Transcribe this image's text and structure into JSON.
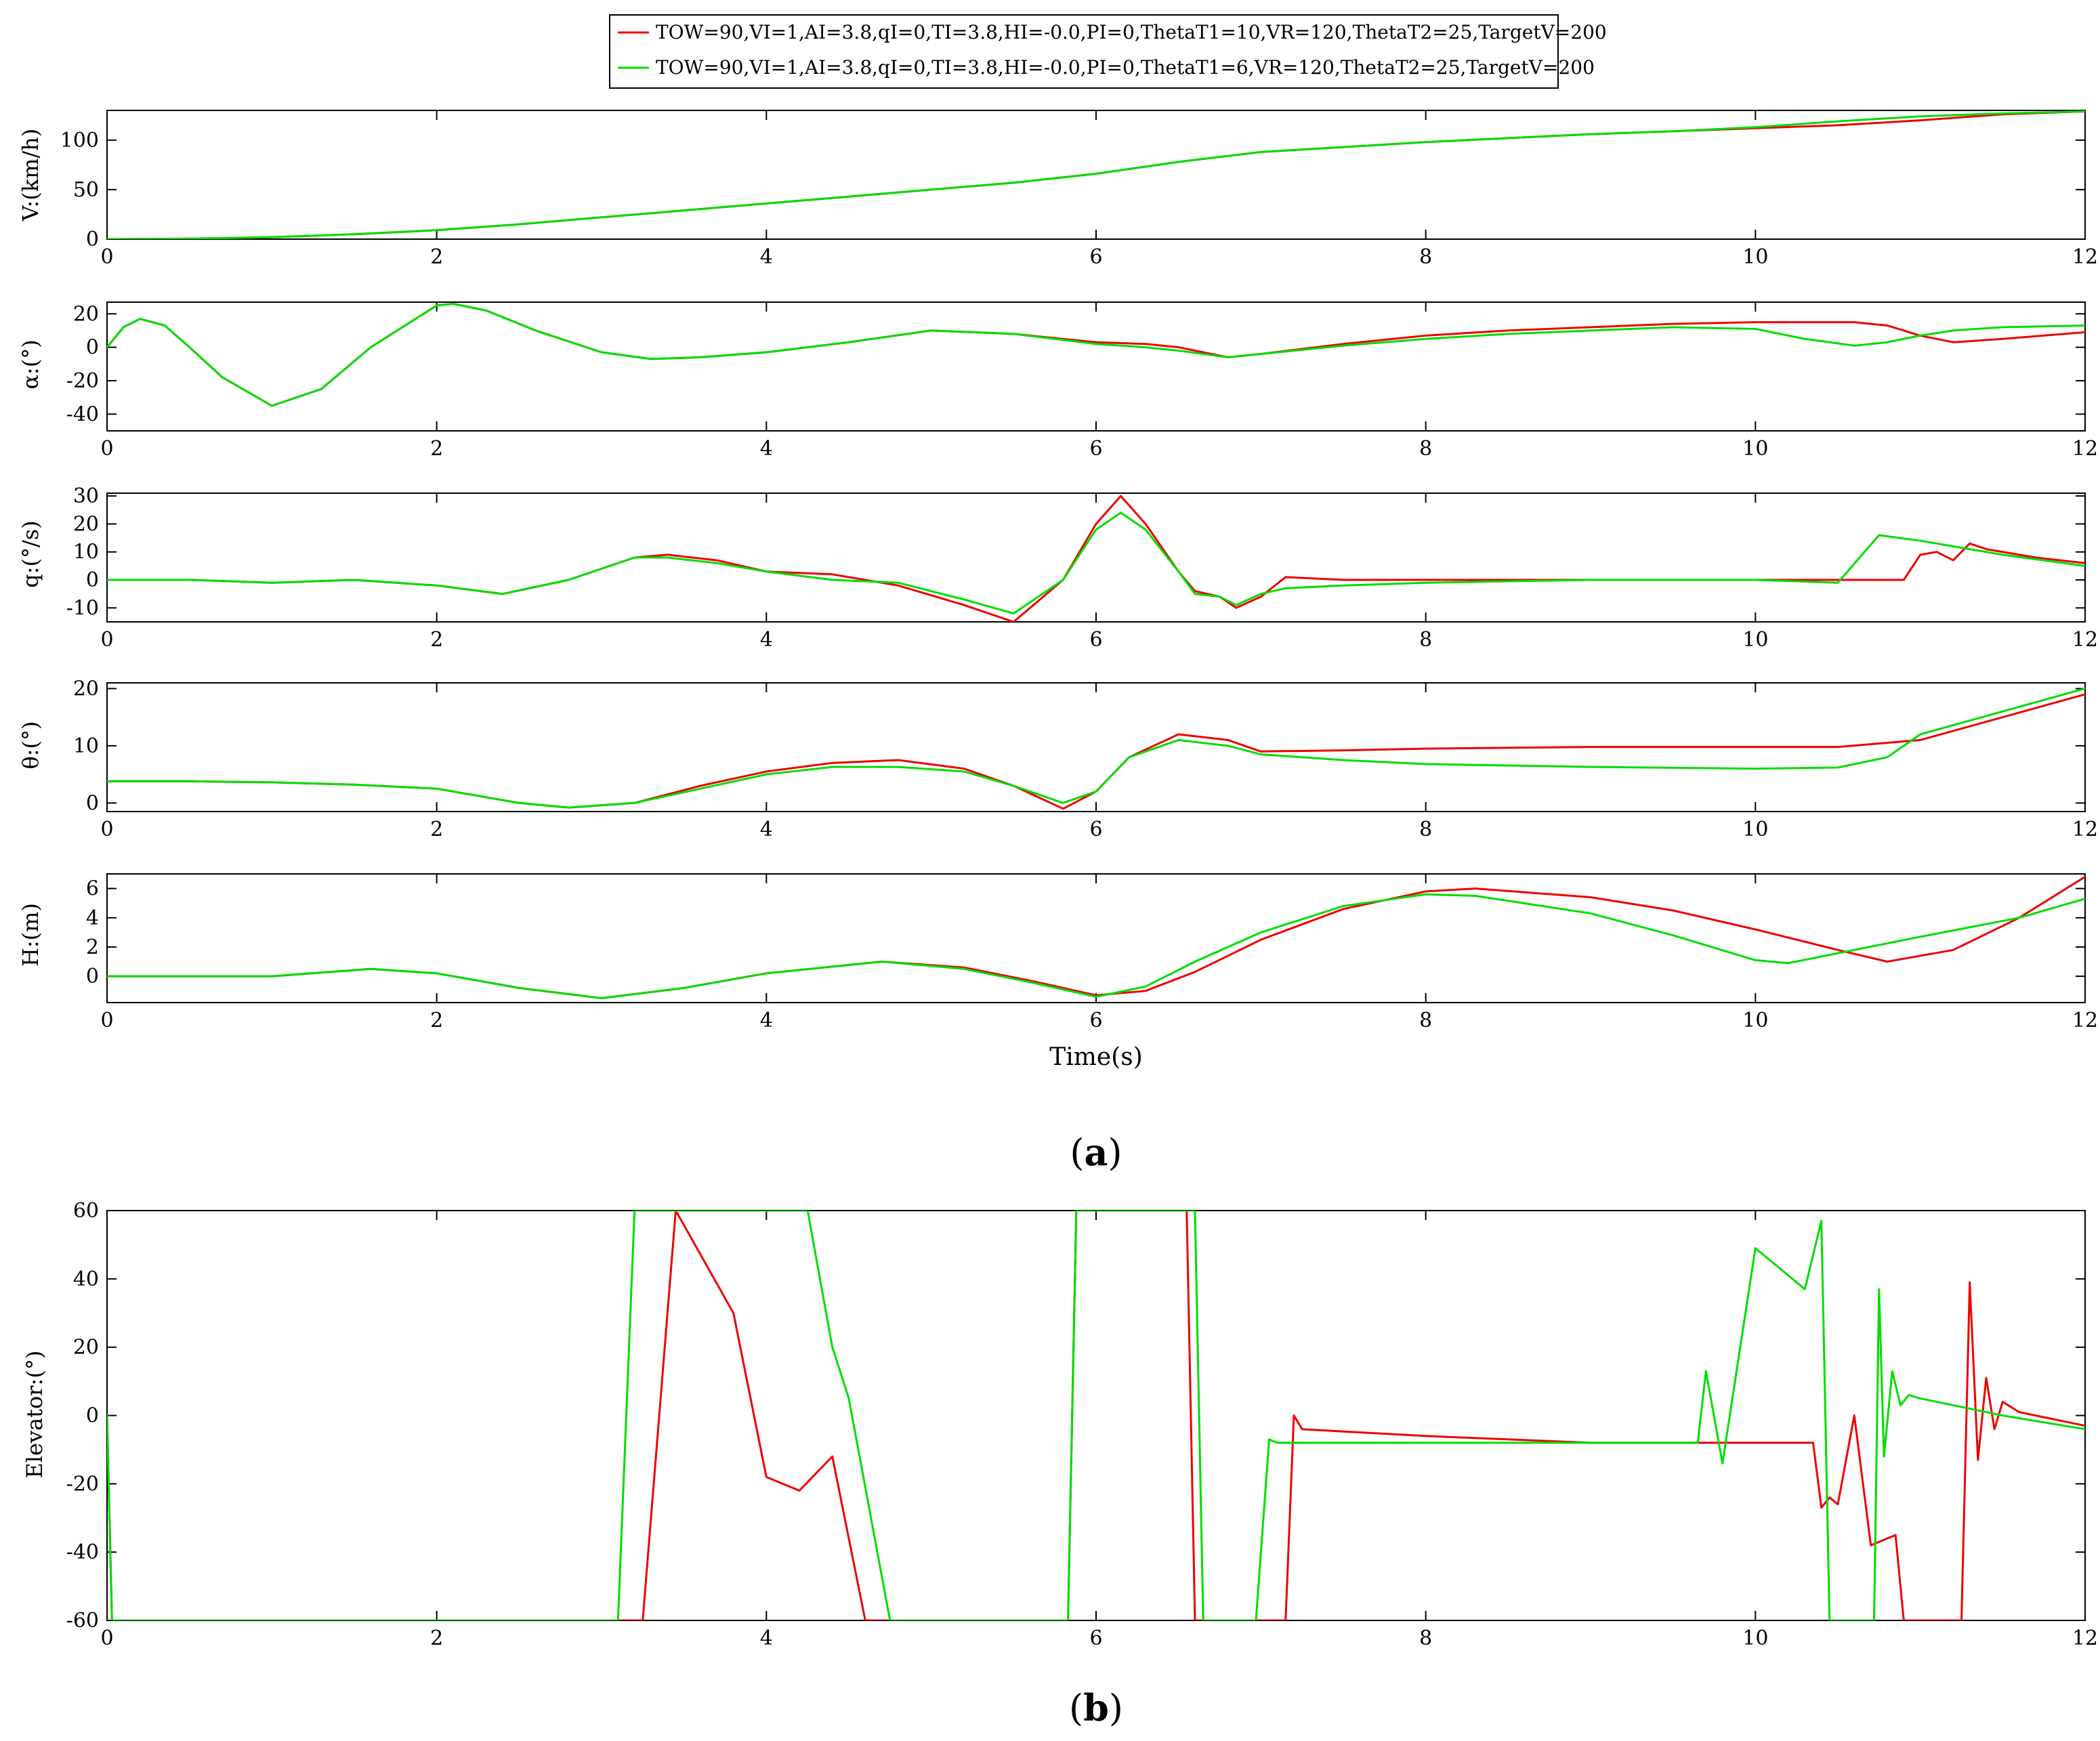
{
  "colors": {
    "red": "#ee0000",
    "green": "#00dd00"
  },
  "legend": {
    "entries": [
      {
        "text": "TOW=90,VI=1,AI=3.8,qI=0,TI=3.8,HI=-0.0,PI=0,ThetaT1=10,VR=120,ThetaT2=25,TargetV=200",
        "color": "#ee0000"
      },
      {
        "text": "TOW=90,VI=1,AI=3.8,qI=0,TI=3.8,HI=-0.0,PI=0,ThetaT1=6,VR=120,ThetaT2=25,TargetV=200",
        "color": "#00dd00"
      }
    ]
  },
  "figure": {
    "xlabel": "Time(s)",
    "caption_a": "a",
    "caption_b": "b"
  },
  "chart_data": [
    {
      "type": "line",
      "ylabel": "V:(km/h)",
      "xlim": [
        0,
        12
      ],
      "ylim": [
        0,
        130
      ],
      "xticks": [
        0,
        2,
        4,
        6,
        8,
        10,
        12
      ],
      "yticks": [
        0,
        50,
        100
      ],
      "series": [
        {
          "color": "#ee0000",
          "x": [
            0,
            0.5,
            1,
            1.5,
            2,
            2.5,
            3,
            3.5,
            4,
            4.5,
            5,
            5.5,
            6,
            6.5,
            7,
            7.5,
            8,
            8.5,
            9,
            9.5,
            10,
            10.5,
            11,
            11.5,
            12
          ],
          "y": [
            0,
            0.5,
            2,
            5,
            9,
            15,
            22,
            29,
            36,
            43,
            50,
            57,
            66,
            78,
            88,
            93,
            98,
            102,
            106,
            109,
            112,
            115,
            120,
            126,
            129
          ]
        },
        {
          "color": "#00dd00",
          "x": [
            0,
            0.5,
            1,
            1.5,
            2,
            2.5,
            3,
            3.5,
            4,
            4.5,
            5,
            5.5,
            6,
            6.5,
            7,
            7.5,
            8,
            8.5,
            9,
            9.5,
            10,
            10.5,
            11,
            11.5,
            12
          ],
          "y": [
            0,
            0.5,
            2,
            5,
            9,
            15,
            22,
            29,
            36,
            43,
            50,
            57,
            66,
            78,
            88,
            93,
            98,
            102,
            106,
            109,
            113,
            119,
            124,
            127,
            129
          ]
        }
      ]
    },
    {
      "type": "line",
      "ylabel": "α:(°)",
      "xlim": [
        0,
        12
      ],
      "ylim": [
        -50,
        27
      ],
      "xticks": [
        0,
        2,
        4,
        6,
        8,
        10,
        12
      ],
      "yticks": [
        -40,
        -20,
        0,
        20
      ],
      "series": [
        {
          "color": "#ee0000",
          "x": [
            0,
            0.1,
            0.2,
            0.35,
            0.5,
            0.7,
            1,
            1.3,
            1.6,
            2,
            2.1,
            2.3,
            2.6,
            3,
            3.3,
            3.6,
            4,
            4.5,
            5,
            5.5,
            6,
            6.3,
            6.5,
            6.8,
            7,
            7.5,
            8,
            8.5,
            9,
            9.5,
            10,
            10.3,
            10.6,
            10.8,
            11,
            11.2,
            11.5,
            12
          ],
          "y": [
            0,
            12,
            17,
            13,
            0,
            -18,
            -35,
            -25,
            0,
            25,
            26,
            22,
            10,
            -3,
            -7,
            -6,
            -3,
            3,
            10,
            8,
            3,
            2,
            0,
            -6,
            -4,
            2,
            7,
            10,
            12,
            14,
            15,
            15,
            15,
            13,
            7,
            3,
            5,
            9
          ]
        },
        {
          "color": "#00dd00",
          "x": [
            0,
            0.1,
            0.2,
            0.35,
            0.5,
            0.7,
            1,
            1.3,
            1.6,
            2,
            2.1,
            2.3,
            2.6,
            3,
            3.3,
            3.6,
            4,
            4.5,
            5,
            5.5,
            6,
            6.3,
            6.5,
            6.8,
            7,
            7.5,
            8,
            8.5,
            9,
            9.5,
            10,
            10.3,
            10.6,
            10.8,
            11,
            11.2,
            11.5,
            12
          ],
          "y": [
            0,
            12,
            17,
            13,
            0,
            -18,
            -35,
            -25,
            0,
            25,
            26,
            22,
            10,
            -3,
            -7,
            -6,
            -3,
            3,
            10,
            8,
            2,
            0,
            -2,
            -6,
            -4,
            1,
            5,
            8,
            10,
            12,
            11,
            5,
            1,
            3,
            7,
            10,
            12,
            13
          ]
        }
      ]
    },
    {
      "type": "line",
      "ylabel": "q:(°/s)",
      "xlim": [
        0,
        12
      ],
      "ylim": [
        -15,
        31
      ],
      "xticks": [
        0,
        2,
        4,
        6,
        8,
        10,
        12
      ],
      "yticks": [
        -10,
        0,
        10,
        20,
        30
      ],
      "series": [
        {
          "color": "#ee0000",
          "x": [
            0,
            0.5,
            1,
            1.5,
            2,
            2.4,
            2.8,
            3.2,
            3.4,
            3.7,
            4,
            4.4,
            4.8,
            5.2,
            5.5,
            5.8,
            6,
            6.15,
            6.3,
            6.5,
            6.6,
            6.75,
            6.85,
            7,
            7.15,
            7.5,
            8,
            9,
            10,
            10.5,
            10.9,
            11,
            11.1,
            11.2,
            11.3,
            11.4,
            11.7,
            12
          ],
          "y": [
            0,
            0,
            -1,
            0,
            -2,
            -5,
            0,
            8,
            9,
            7,
            3,
            2,
            -2,
            -9,
            -15,
            0,
            20,
            30,
            20,
            3,
            -4,
            -6,
            -10,
            -6,
            1,
            0,
            0,
            0,
            0,
            0,
            0,
            9,
            10,
            7,
            13,
            11,
            8,
            6
          ]
        },
        {
          "color": "#00dd00",
          "x": [
            0,
            0.5,
            1,
            1.5,
            2,
            2.4,
            2.8,
            3.2,
            3.4,
            3.7,
            4,
            4.4,
            4.8,
            5.2,
            5.5,
            5.8,
            6,
            6.15,
            6.3,
            6.5,
            6.6,
            6.75,
            6.85,
            7,
            7.15,
            7.5,
            8,
            9,
            10,
            10.5,
            10.75,
            11,
            11.5,
            12
          ],
          "y": [
            0,
            0,
            -1,
            0,
            -2,
            -5,
            0,
            8,
            8,
            6,
            3,
            0,
            -1,
            -7,
            -12,
            0,
            18,
            24,
            18,
            3,
            -5,
            -6,
            -9,
            -5,
            -3,
            -2,
            -1,
            0,
            0,
            -1,
            16,
            14,
            9,
            5
          ]
        }
      ]
    },
    {
      "type": "line",
      "ylabel": "θ:(°)",
      "xlim": [
        0,
        12
      ],
      "ylim": [
        -1.5,
        21
      ],
      "xticks": [
        0,
        2,
        4,
        6,
        8,
        10,
        12
      ],
      "yticks": [
        0,
        10,
        20
      ],
      "series": [
        {
          "color": "#ee0000",
          "x": [
            0,
            0.5,
            1,
            1.5,
            2,
            2.5,
            2.8,
            3.2,
            3.6,
            4,
            4.4,
            4.8,
            5.2,
            5.5,
            5.8,
            6,
            6.2,
            6.5,
            6.8,
            7,
            7.5,
            8,
            9,
            10,
            10.5,
            11,
            11.5,
            12
          ],
          "y": [
            3.8,
            3.8,
            3.6,
            3.2,
            2.5,
            0,
            -0.8,
            0,
            3,
            5.5,
            7,
            7.5,
            6,
            3,
            -1,
            2,
            8,
            12,
            11,
            9,
            9.2,
            9.5,
            9.8,
            9.8,
            9.8,
            11,
            15,
            19
          ]
        },
        {
          "color": "#00dd00",
          "x": [
            0,
            0.5,
            1,
            1.5,
            2,
            2.5,
            2.8,
            3.2,
            3.6,
            4,
            4.4,
            4.8,
            5.2,
            5.5,
            5.8,
            6,
            6.2,
            6.5,
            6.8,
            7,
            7.5,
            8,
            9,
            10,
            10.5,
            10.8,
            11,
            11.5,
            12
          ],
          "y": [
            3.8,
            3.8,
            3.6,
            3.2,
            2.5,
            0,
            -0.8,
            0,
            2.5,
            5,
            6.3,
            6.3,
            5.5,
            3,
            0,
            2,
            8,
            11,
            10,
            8.5,
            7.5,
            6.8,
            6.3,
            6,
            6.2,
            8,
            12,
            16,
            20
          ]
        }
      ]
    },
    {
      "type": "line",
      "ylabel": "H:(m)",
      "xlim": [
        0,
        12
      ],
      "ylim": [
        -1.8,
        7
      ],
      "xticks": [
        0,
        2,
        4,
        6,
        8,
        10,
        12
      ],
      "yticks": [
        0,
        2,
        4,
        6
      ],
      "series": [
        {
          "color": "#ee0000",
          "x": [
            0,
            0.5,
            1,
            1.6,
            2,
            2.5,
            3,
            3.5,
            4,
            4.7,
            5.2,
            5.6,
            6,
            6.3,
            6.6,
            7,
            7.5,
            8,
            8.3,
            9,
            9.5,
            10,
            10.5,
            10.8,
            11.2,
            11.6,
            12
          ],
          "y": [
            0,
            0,
            0,
            0.5,
            0.2,
            -0.8,
            -1.5,
            -0.8,
            0.2,
            1,
            0.6,
            -0.3,
            -1.3,
            -1,
            0.3,
            2.5,
            4.6,
            5.8,
            6,
            5.4,
            4.5,
            3.2,
            1.8,
            1,
            1.8,
            4,
            6.8
          ]
        },
        {
          "color": "#00dd00",
          "x": [
            0,
            0.5,
            1,
            1.6,
            2,
            2.5,
            3,
            3.5,
            4,
            4.7,
            5.2,
            5.6,
            6,
            6.3,
            6.6,
            7,
            7.5,
            8,
            8.3,
            9,
            9.5,
            10,
            10.2,
            10.6,
            11,
            11.6,
            12
          ],
          "y": [
            0,
            0,
            0,
            0.5,
            0.2,
            -0.8,
            -1.5,
            -0.8,
            0.2,
            1,
            0.5,
            -0.4,
            -1.4,
            -0.7,
            1,
            3,
            4.8,
            5.6,
            5.5,
            4.3,
            2.8,
            1.1,
            0.9,
            1.8,
            2.7,
            4,
            5.3
          ]
        }
      ]
    },
    {
      "type": "line",
      "ylabel": "Elevator:(°)",
      "xlim": [
        0,
        12
      ],
      "ylim": [
        -60,
        60
      ],
      "xticks": [
        0,
        2,
        4,
        6,
        8,
        10,
        12
      ],
      "yticks": [
        -60,
        -40,
        -20,
        0,
        20,
        40,
        60
      ],
      "series": [
        {
          "color": "#ee0000",
          "x": [
            0,
            0.03,
            3.25,
            3.45,
            3.8,
            4,
            4.2,
            4.4,
            4.6,
            4.72,
            5.83,
            5.88,
            6.55,
            6.6,
            7.15,
            7.2,
            7.25,
            8,
            9,
            10,
            10.35,
            10.4,
            10.45,
            10.5,
            10.6,
            10.7,
            10.75,
            10.85,
            10.9,
            11.25,
            11.3,
            11.35,
            11.4,
            11.45,
            11.5,
            11.6,
            12
          ],
          "y": [
            0,
            -60,
            -60,
            60,
            30,
            -18,
            -22,
            -12,
            -60,
            -60,
            -60,
            60,
            60,
            -60,
            -60,
            0,
            -4,
            -6,
            -8,
            -8,
            -8,
            -27,
            -24,
            -26,
            0,
            -38,
            -37,
            -35,
            -60,
            -60,
            39,
            -13,
            11,
            -4,
            4,
            1,
            -3
          ]
        },
        {
          "color": "#00dd00",
          "x": [
            0,
            0.03,
            3.1,
            3.2,
            4.25,
            4.4,
            4.5,
            4.75,
            5.83,
            5.88,
            6.6,
            6.65,
            6.97,
            7.05,
            7.1,
            8,
            9,
            9.65,
            9.7,
            9.8,
            10,
            10.3,
            10.4,
            10.45,
            10.72,
            10.75,
            10.78,
            10.83,
            10.88,
            10.93,
            11,
            11.5,
            12
          ],
          "y": [
            0,
            -60,
            -60,
            60,
            60,
            20,
            5,
            -60,
            -60,
            60,
            60,
            -60,
            -60,
            -7,
            -8,
            -8,
            -8,
            -8,
            13,
            -14,
            49,
            37,
            57,
            -60,
            -60,
            37,
            -12,
            13,
            3,
            6,
            5,
            0,
            -4
          ]
        }
      ]
    }
  ]
}
